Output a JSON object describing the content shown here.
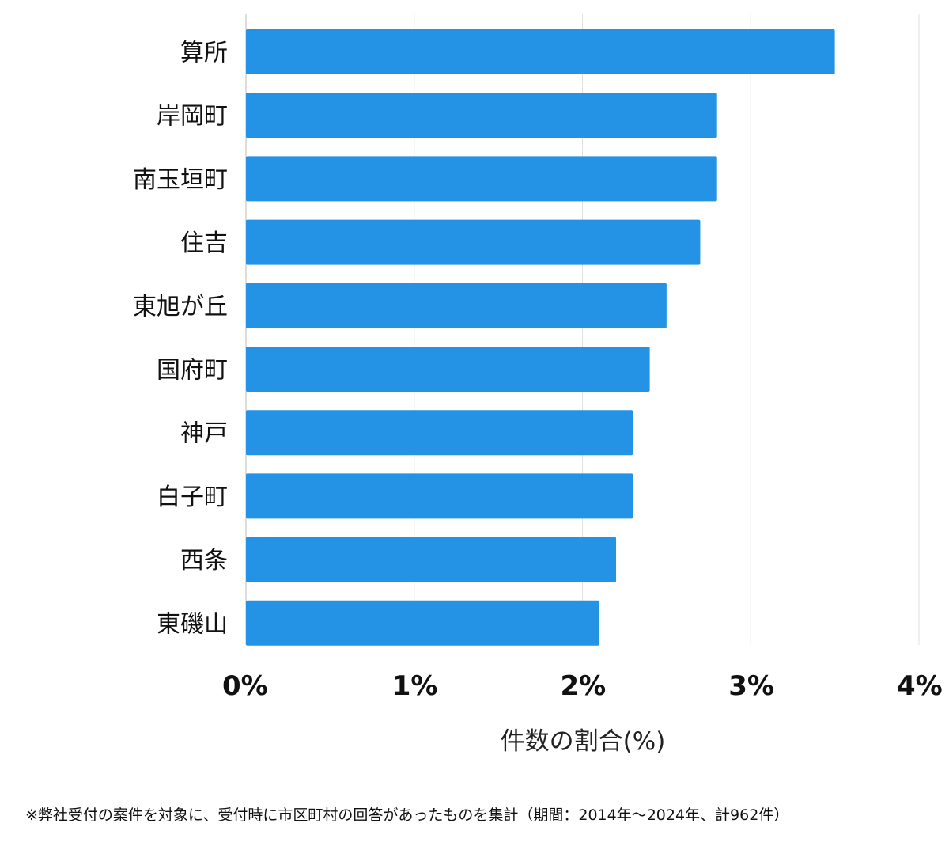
{
  "chart_data": {
    "type": "bar",
    "orientation": "horizontal",
    "categories": [
      "算所",
      "岸岡町",
      "南玉垣町",
      "住吉",
      "東旭が丘",
      "国府町",
      "神戸",
      "白子町",
      "西条",
      "東磯山"
    ],
    "values": [
      3.5,
      2.8,
      2.8,
      2.7,
      2.5,
      2.4,
      2.3,
      2.3,
      2.2,
      2.1
    ],
    "xlabel": "件数の割合(%)",
    "ylabel": "",
    "xlim": [
      0,
      4
    ],
    "xticks": [
      "0%",
      "1%",
      "2%",
      "3%",
      "4%"
    ],
    "grid": "vertical",
    "bar_color": "#2493e6"
  },
  "footnote": "※弊社受付の案件を対象に、受付時に市区町村の回答があったものを集計（期間：2014年～2024年、計962件）"
}
